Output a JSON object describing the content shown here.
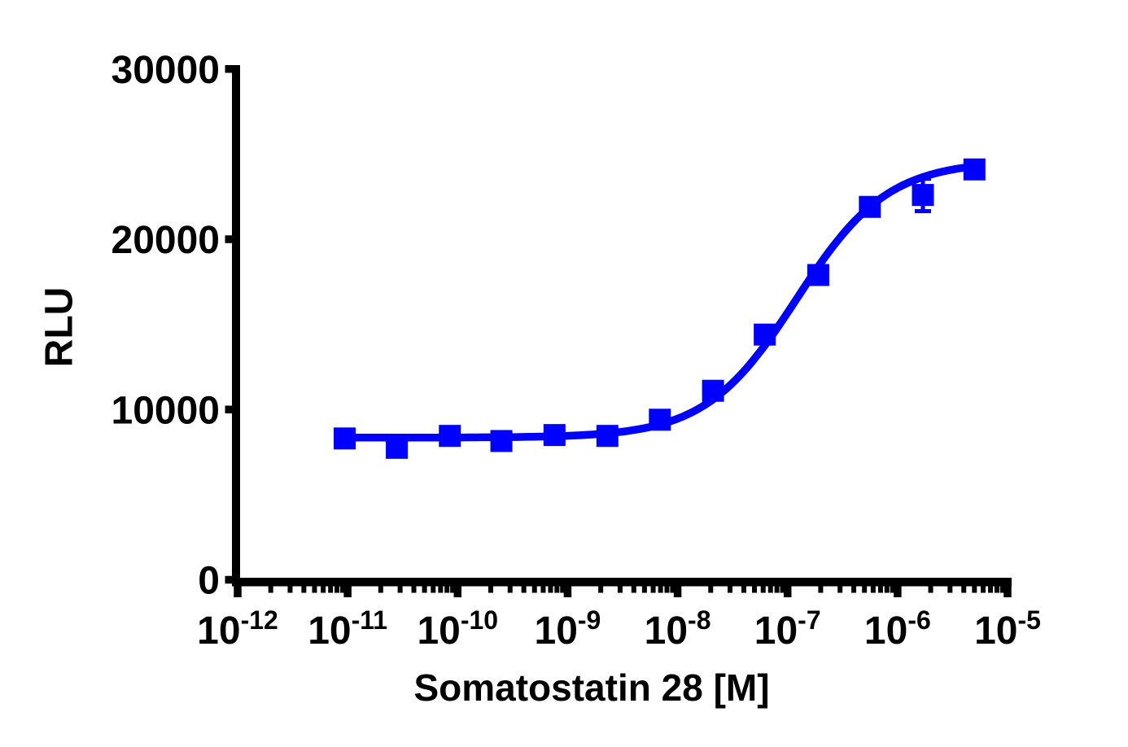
{
  "chart_data": {
    "type": "scatter",
    "subtype": "dose-response-curve",
    "title": "",
    "xlabel": "Somatostatin 28 [M]",
    "ylabel": "RLU",
    "x_scale": "log10",
    "x_tick_exponents": [
      -12,
      -11,
      -10,
      -9,
      -8,
      -7,
      -6,
      -5
    ],
    "x_tick_base": "10",
    "log_minor_ticks": true,
    "y_ticks": [
      0,
      10000,
      20000,
      30000
    ],
    "y_tick_labels": [
      "0",
      "10000",
      "20000",
      "30000"
    ],
    "xlim_exponents": [
      -12,
      -5
    ],
    "ylim": [
      0,
      30000
    ],
    "grid": false,
    "legend": "none",
    "colors": {
      "series": "#0000ff",
      "axis": "#000000",
      "background": "#ffffff"
    },
    "series": [
      {
        "name": "Somatostatin 28",
        "marker": "square",
        "marker_color": "#0000ff",
        "line_color": "#0000ff",
        "points": [
          {
            "conc": 9.4e-12,
            "rlu": 8300,
            "sem": 150
          },
          {
            "conc": 2.8e-11,
            "rlu": 7750,
            "sem": 150
          },
          {
            "conc": 8.5e-11,
            "rlu": 8450,
            "sem": 150
          },
          {
            "conc": 2.5e-10,
            "rlu": 8150,
            "sem": 150
          },
          {
            "conc": 7.6e-10,
            "rlu": 8500,
            "sem": 150
          },
          {
            "conc": 2.3e-09,
            "rlu": 8450,
            "sem": 150
          },
          {
            "conc": 6.9e-09,
            "rlu": 9400,
            "sem": 200
          },
          {
            "conc": 2.1e-08,
            "rlu": 11100,
            "sem": 250
          },
          {
            "conc": 6.2e-08,
            "rlu": 14400,
            "sem": 300
          },
          {
            "conc": 1.9e-07,
            "rlu": 17900,
            "sem": 350
          },
          {
            "conc": 5.6e-07,
            "rlu": 21900,
            "sem": 400
          },
          {
            "conc": 1.7e-06,
            "rlu": 22600,
            "sem": 950
          },
          {
            "conc": 5e-06,
            "rlu": 24100,
            "sem": 400
          }
        ],
        "fit": {
          "model": "log(agonist) vs response (4PL)",
          "bottom": 8350,
          "top": 24600,
          "log_ec50": -6.92,
          "hill": 1.05
        }
      }
    ]
  }
}
